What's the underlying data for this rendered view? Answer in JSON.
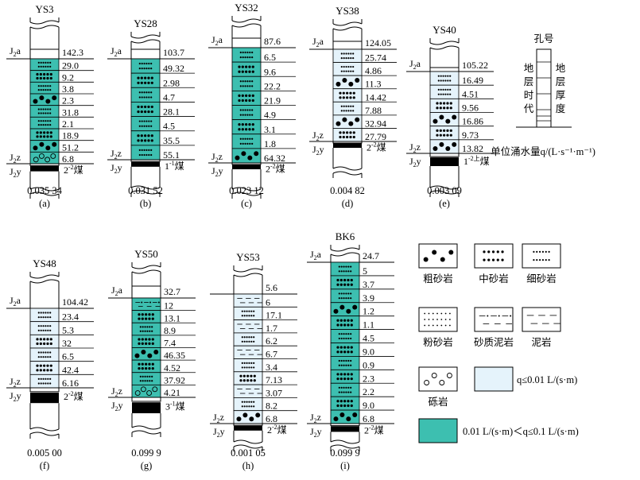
{
  "colors": {
    "high": "#3dbfb0",
    "low": "#e5f3fb",
    "line": "#000000"
  },
  "boreholes": [
    {
      "name": "YS3",
      "top": "J2a",
      "bottom": "J2y",
      "mid": "J2z",
      "coal": "2-2煤",
      "q": "0.035 34",
      "caption": "(a)",
      "layers": [
        {
          "t": "29.0",
          "r": "fine",
          "z": "high"
        },
        {
          "t": "9.2",
          "r": "medium",
          "z": "high"
        },
        {
          "t": "3.8",
          "r": "fine",
          "z": "high"
        },
        {
          "t": "2.3",
          "r": "coarse",
          "z": "high"
        },
        {
          "t": "31.8",
          "r": "fine",
          "z": "high"
        },
        {
          "t": "2.1",
          "r": "fine",
          "z": "high"
        },
        {
          "t": "18.9",
          "r": "medium",
          "z": "high"
        },
        {
          "t": "51.2",
          "r": "coarse",
          "z": "high"
        },
        {
          "t": "6.8",
          "r": "gravel",
          "z": "high"
        }
      ],
      "topThick": "142.3"
    },
    {
      "name": "YS28",
      "top": "J2a",
      "bottom": "J2y",
      "mid": "J2z",
      "coal": "1-1煤",
      "q": "0.031 52",
      "caption": "(b)",
      "layers": [
        {
          "t": "49.32",
          "r": "fine",
          "z": "high"
        },
        {
          "t": "2.98",
          "r": "medium",
          "z": "high"
        },
        {
          "t": "4.7",
          "r": "fine",
          "z": "high"
        },
        {
          "t": "28.1",
          "r": "medium",
          "z": "high"
        },
        {
          "t": "4.5",
          "r": "fine",
          "z": "high"
        },
        {
          "t": "35.5",
          "r": "medium",
          "z": "high"
        },
        {
          "t": "55.1",
          "r": "fine",
          "z": "high"
        }
      ],
      "topThick": "103.7"
    },
    {
      "name": "YS32",
      "top": "J2a",
      "bottom": "J2y",
      "mid": "J2z",
      "coal": "2-2煤",
      "q": "0.023 12",
      "caption": "(c)",
      "layers": [
        {
          "t": "6.5",
          "r": "fine",
          "z": "high"
        },
        {
          "t": "9.6",
          "r": "medium",
          "z": "high"
        },
        {
          "t": "22.2",
          "r": "fine",
          "z": "high"
        },
        {
          "t": "21.9",
          "r": "medium",
          "z": "high"
        },
        {
          "t": "4.9",
          "r": "fine",
          "z": "high"
        },
        {
          "t": "3.1",
          "r": "medium",
          "z": "high"
        },
        {
          "t": "1.8",
          "r": "fine",
          "z": "high"
        },
        {
          "t": "64.32",
          "r": "coarse",
          "z": "high"
        }
      ],
      "topThick": "87.6"
    },
    {
      "name": "YS38",
      "top": "J2a",
      "bottom": "J2y",
      "mid": "J2z",
      "coal": "2-2煤",
      "q": "0.004 82",
      "caption": "(d)",
      "layers": [
        {
          "t": "25.74",
          "r": "fine",
          "z": "low"
        },
        {
          "t": "4.86",
          "r": "fine",
          "z": "low"
        },
        {
          "t": "11.3",
          "r": "coarse",
          "z": "low"
        },
        {
          "t": "14.42",
          "r": "medium",
          "z": "low"
        },
        {
          "t": "7.88",
          "r": "fine",
          "z": "low"
        },
        {
          "t": "32.94",
          "r": "coarse",
          "z": "low"
        },
        {
          "t": "27.79",
          "r": "medium",
          "z": "low"
        }
      ],
      "topThick": "124.05"
    },
    {
      "name": "YS40",
      "top": "J2a",
      "bottom": "J2y",
      "mid": "J2z",
      "coal": "1-2上煤",
      "q": "0.003 09",
      "caption": "(e)",
      "layers": [
        {
          "t": "16.49",
          "r": "fine",
          "z": "low"
        },
        {
          "t": "4.51",
          "r": "fine",
          "z": "low"
        },
        {
          "t": "9.56",
          "r": "medium",
          "z": "low"
        },
        {
          "t": "16.86",
          "r": "coarse",
          "z": "low"
        },
        {
          "t": "9.73",
          "r": "medium",
          "z": "low"
        },
        {
          "t": "13.82",
          "r": "coarse",
          "z": "low"
        }
      ],
      "topThick": "105.22"
    },
    {
      "name": "YS48",
      "top": "J2a",
      "bottom": "J2y",
      "mid": "J2z",
      "coal": "2-2煤",
      "q": "0.005 00",
      "caption": "(f)",
      "layers": [
        {
          "t": "23.4",
          "r": "fine",
          "z": "low"
        },
        {
          "t": "5.3",
          "r": "fine",
          "z": "low"
        },
        {
          "t": "32",
          "r": "medium",
          "z": "low"
        },
        {
          "t": "6.5",
          "r": "fine",
          "z": "low"
        },
        {
          "t": "42.4",
          "r": "medium",
          "z": "low"
        },
        {
          "t": "6.16",
          "r": "fine",
          "z": "low"
        }
      ],
      "topThick": "104.42"
    },
    {
      "name": "YS50",
      "top": "J2a",
      "bottom": "J2y",
      "mid": "J2z",
      "coal": "3-1煤",
      "q": "0.099 9",
      "caption": "(g)",
      "layers": [
        {
          "t": "12",
          "r": "sandymud",
          "z": "high"
        },
        {
          "t": "13.1",
          "r": "medium",
          "z": "high"
        },
        {
          "t": "8.9",
          "r": "fine",
          "z": "high"
        },
        {
          "t": "7.4",
          "r": "medium",
          "z": "high"
        },
        {
          "t": "46.35",
          "r": "coarse",
          "z": "high"
        },
        {
          "t": "4.52",
          "r": "medium",
          "z": "high"
        },
        {
          "t": "37.92",
          "r": "fine",
          "z": "high"
        },
        {
          "t": "4.21",
          "r": "gravel",
          "z": "high"
        }
      ],
      "topThick": "32.7"
    },
    {
      "name": "YS53",
      "top": "",
      "bottom": "J2y",
      "mid": "J2z",
      "coal": "2-2煤",
      "q": "0.001 05",
      "caption": "(h)",
      "layers": [
        {
          "t": "6",
          "r": "mud",
          "z": "low"
        },
        {
          "t": "17.1",
          "r": "fine",
          "z": "low"
        },
        {
          "t": "1.7",
          "r": "mud",
          "z": "low"
        },
        {
          "t": "6.2",
          "r": "fine",
          "z": "low"
        },
        {
          "t": "6.7",
          "r": "mud",
          "z": "low"
        },
        {
          "t": "3.4",
          "r": "fine",
          "z": "low"
        },
        {
          "t": "7.13",
          "r": "medium",
          "z": "low"
        },
        {
          "t": "3.07",
          "r": "mud",
          "z": "low"
        },
        {
          "t": "8.2",
          "r": "fine",
          "z": "low"
        },
        {
          "t": "6.8",
          "r": "coarse",
          "z": "low"
        }
      ],
      "topThick": "5.6"
    },
    {
      "name": "BK6",
      "top": "J2a",
      "bottom": "J2y",
      "mid": "J2z",
      "coal": "2-2煤",
      "q": "0.099 9",
      "caption": "(i)",
      "layers": [
        {
          "t": "5",
          "r": "fine",
          "z": "high"
        },
        {
          "t": "3.7",
          "r": "medium",
          "z": "high"
        },
        {
          "t": "3.9",
          "r": "fine",
          "z": "high"
        },
        {
          "t": "1.2",
          "r": "coarse",
          "z": "high"
        },
        {
          "t": "1.1",
          "r": "medium",
          "z": "high"
        },
        {
          "t": "4.5",
          "r": "fine",
          "z": "high"
        },
        {
          "t": "9.0",
          "r": "medium",
          "z": "high"
        },
        {
          "t": "0.9",
          "r": "fine",
          "z": "high"
        },
        {
          "t": "2.3",
          "r": "medium",
          "z": "high"
        },
        {
          "t": "2.2",
          "r": "fine",
          "z": "high"
        },
        {
          "t": "9.0",
          "r": "medium",
          "z": "high"
        },
        {
          "t": "6.8",
          "r": "coarse",
          "z": "high"
        }
      ],
      "topThick": "24.7"
    }
  ],
  "key": {
    "title": "孔号",
    "left_label": "地层时代",
    "right_label": "地层厚度",
    "q_label": "单位涌水量q/(L·s⁻¹·m⁻¹)"
  },
  "legend": {
    "coarse": "粗砂岩",
    "medium": "中砂岩",
    "fine": "细砂岩",
    "silt": "粉砂岩",
    "sandymud": "砂质泥岩",
    "mud": "泥岩",
    "gravel": "砾岩",
    "low": "q≤0.01 L/(s·m)",
    "high": "0.01 L/(s·m)＜q≤0.1 L/(s·m)"
  }
}
